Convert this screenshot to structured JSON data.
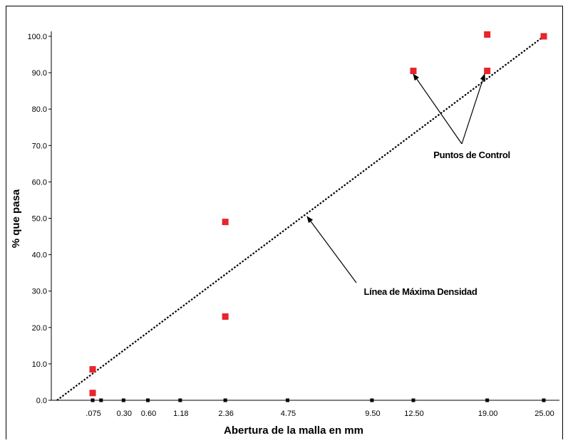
{
  "chart_data": {
    "type": "scatter",
    "xlabel": "Abertura de la malla en mm",
    "ylabel": "% que pasa",
    "ylim": [
      0,
      100
    ],
    "yticks": [
      "0.0",
      "10.0",
      "20.0",
      "30.0",
      "40.0",
      "50.0",
      "60.0",
      "70.0",
      "80.0",
      "90.0",
      "100.0"
    ],
    "xticks": [
      ".075",
      "0.30",
      "0.60",
      "1.18",
      "2.36",
      "4.75",
      "9.50",
      "12.50",
      "19.00",
      "25.00"
    ],
    "x_scale": "power-0.45",
    "grid": false,
    "points": [
      {
        "x": 0.075,
        "y": 8.5
      },
      {
        "x": 0.075,
        "y": 2.0
      },
      {
        "x": 2.36,
        "y": 49.0
      },
      {
        "x": 2.36,
        "y": 23.0
      },
      {
        "x": 12.5,
        "y": 90.5
      },
      {
        "x": 19.0,
        "y": 100.5
      },
      {
        "x": 19.0,
        "y": 90.5
      },
      {
        "x": 25.0,
        "y": 100.0
      }
    ],
    "max_density_line": {
      "x": [
        0,
        25.0
      ],
      "y": [
        0,
        100
      ]
    },
    "point_color": "#e8242c",
    "line_color": "#000000",
    "annotations": [
      {
        "text": "Puntos de Control"
      },
      {
        "text": "Línea de Máxima Densidad"
      }
    ]
  }
}
